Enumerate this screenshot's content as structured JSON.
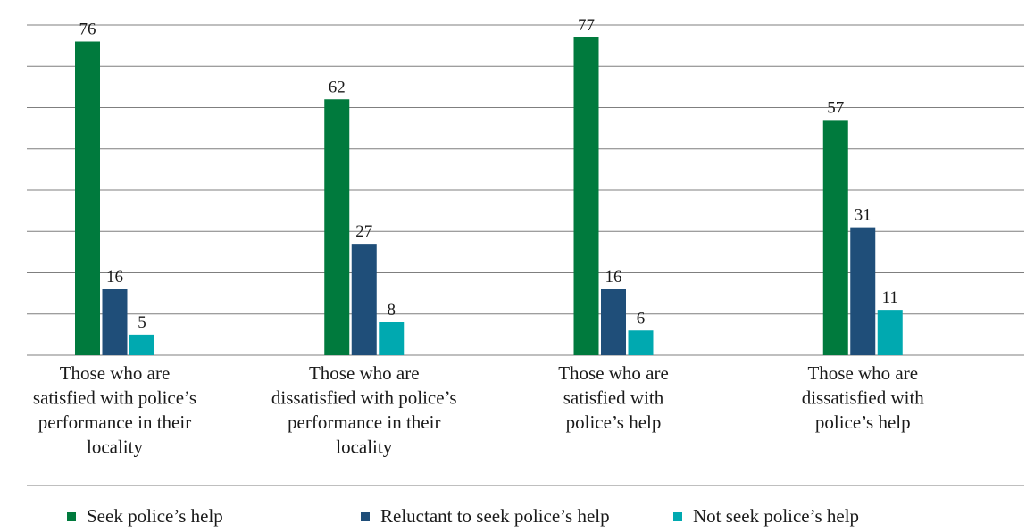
{
  "chart_data": {
    "type": "bar",
    "title": "",
    "xlabel": "",
    "ylabel": "",
    "ylim": [
      0,
      80
    ],
    "grid": true,
    "legend_position": "bottom",
    "categories": [
      [
        "Those who are",
        "satisfied with police’s",
        "performance in their",
        "locality"
      ],
      [
        "Those who are",
        "dissatisfied with police’s",
        "performance in their",
        "locality"
      ],
      [
        "Those who are",
        "satisfied with",
        "police’s help"
      ],
      [
        "Those who are",
        "dissatisfied with",
        "police’s help"
      ]
    ],
    "series": [
      {
        "name": "Seek police’s help",
        "color": "#007a3d",
        "values": [
          76,
          62,
          77,
          57
        ]
      },
      {
        "name": "Reluctant to seek police’s help",
        "color": "#1f4e79",
        "values": [
          16,
          27,
          16,
          31
        ]
      },
      {
        "name": "Not seek police’s help",
        "color": "#00a9b0",
        "values": [
          5,
          8,
          6,
          11
        ]
      }
    ],
    "gridline_color": "#7f7f7f"
  }
}
